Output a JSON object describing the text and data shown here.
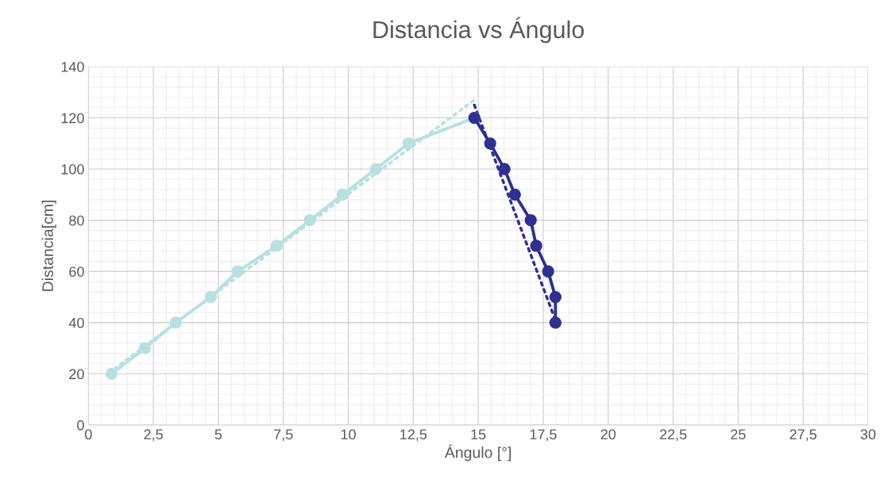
{
  "chart_data": {
    "type": "line",
    "title": "Distancia vs Ángulo",
    "xlabel": "Ángulo [°]",
    "ylabel": "Distancia[cm]",
    "xlim": [
      0,
      30
    ],
    "ylim": [
      0,
      140
    ],
    "xticks": [
      0,
      {
        "value": 2.5,
        "label": "2,5"
      },
      5,
      {
        "value": 7.5,
        "label": "7,5"
      },
      10,
      {
        "value": 12.5,
        "label": "12,5"
      },
      15,
      {
        "value": 17.5,
        "label": "17,5"
      },
      20,
      {
        "value": 22.5,
        "label": "22,5"
      },
      25,
      {
        "value": 27.5,
        "label": "27,5"
      },
      30
    ],
    "yticks": [
      0,
      20,
      40,
      60,
      80,
      100,
      120,
      140
    ],
    "grid": true,
    "legend": false,
    "series": [
      {
        "color": "#b8e0e2",
        "marker": "circle",
        "line_style": "solid",
        "x": [
          0.89,
          2.17,
          3.36,
          4.71,
          5.74,
          7.24,
          8.52,
          9.78,
          11.06,
          12.31,
          14.85
        ],
        "values": [
          20,
          30,
          40,
          50,
          60,
          70,
          80,
          90,
          100,
          110,
          120
        ]
      },
      {
        "color": "#2e3192",
        "marker": "circle",
        "line_style": "solid",
        "x": [
          14.85,
          15.46,
          16.01,
          16.41,
          17.02,
          17.23,
          17.69,
          17.97,
          17.97
        ],
        "values": [
          120,
          110,
          100,
          90,
          80,
          70,
          60,
          50,
          40
        ]
      },
      {
        "color": "#b8e0e2",
        "marker": "none",
        "line_style": "dotted",
        "x": [
          1.0,
          14.85
        ],
        "values": [
          22,
          127
        ]
      },
      {
        "color": "#2e3192",
        "marker": "none",
        "line_style": "dotted",
        "x": [
          14.85,
          17.97
        ],
        "values": [
          125,
          41
        ]
      }
    ]
  }
}
